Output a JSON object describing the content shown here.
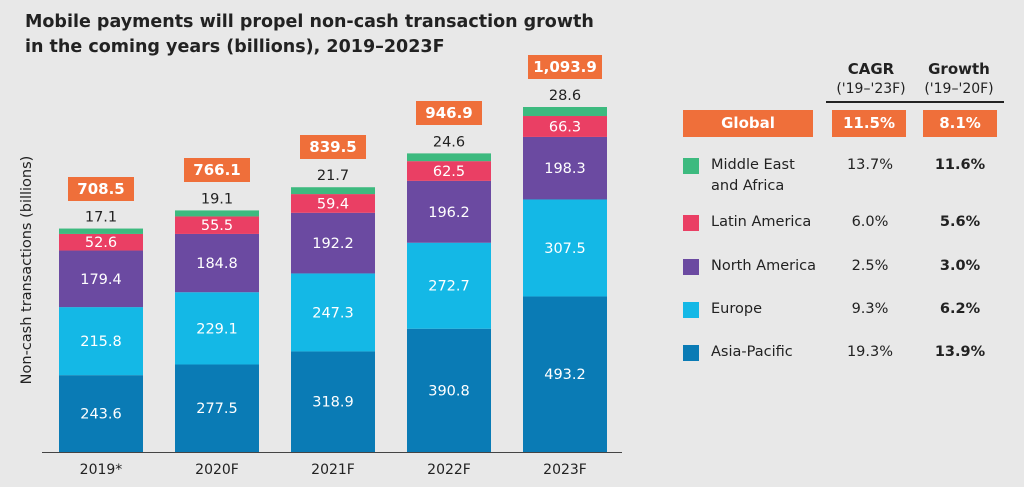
{
  "chart_data": {
    "type": "bar",
    "stacked": true,
    "title": "Mobile payments will propel non-cash transaction growth in the coming years (billions), 2019–2023F",
    "ylabel": "Non-cash transactions (billions)",
    "categories": [
      "2019*",
      "2020F",
      "2021F",
      "2022F",
      "2023F"
    ],
    "totals": [
      "708.5",
      "766.1",
      "839.5",
      "946.9",
      "1,093.9"
    ],
    "series": [
      {
        "name": "Asia-Pacific",
        "color": "#0a7bb5",
        "values": [
          243.6,
          277.5,
          318.9,
          390.8,
          493.2
        ]
      },
      {
        "name": "Europe",
        "color": "#14b8e6",
        "values": [
          215.8,
          229.1,
          247.3,
          272.7,
          307.5
        ]
      },
      {
        "name": "North America",
        "color": "#6b4aa1",
        "values": [
          179.4,
          184.8,
          192.2,
          196.2,
          198.3
        ]
      },
      {
        "name": "Latin America",
        "color": "#ea3f64",
        "values": [
          52.6,
          55.5,
          59.4,
          62.5,
          66.3
        ]
      },
      {
        "name": "Middle East and Africa",
        "color": "#3dba7f",
        "values": [
          17.1,
          19.1,
          21.7,
          24.6,
          28.6
        ]
      }
    ],
    "ylim": [
      0,
      1100
    ],
    "grid": false,
    "accent_color": "#ef6f3a"
  },
  "table": {
    "cagr_header": "CAGR",
    "cagr_period": "('19–'23F)",
    "growth_header": "Growth",
    "growth_period": "('19–'20F)",
    "global": {
      "label": "Global",
      "cagr": "11.5%",
      "growth": "8.1%"
    },
    "rows": [
      {
        "line1": "Middle East",
        "line2": "and Africa",
        "color": "#3dba7f",
        "cagr": "13.7%",
        "growth": "11.6%"
      },
      {
        "line1": "Latin America",
        "line2": "",
        "color": "#ea3f64",
        "cagr": "6.0%",
        "growth": "5.6%"
      },
      {
        "line1": "North America",
        "line2": "",
        "color": "#6b4aa1",
        "cagr": "2.5%",
        "growth": "3.0%"
      },
      {
        "line1": "Europe",
        "line2": "",
        "color": "#14b8e6",
        "cagr": "9.3%",
        "growth": "6.2%"
      },
      {
        "line1": "Asia-Pacific",
        "line2": "",
        "color": "#0a7bb5",
        "cagr": "19.3%",
        "growth": "13.9%"
      }
    ]
  },
  "title_line1": "Mobile payments will propel non-cash transaction growth",
  "title_line2": "in the coming years (billions), 2019–2023F"
}
